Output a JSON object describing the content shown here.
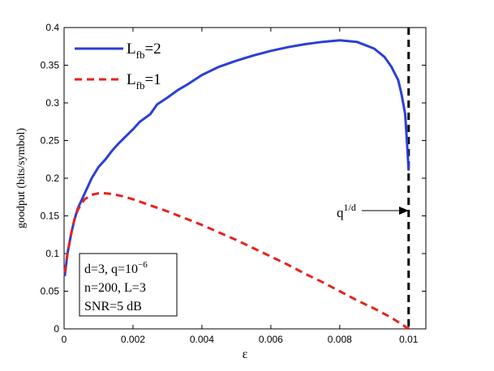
{
  "chart_data": {
    "type": "line",
    "xlabel": "ε",
    "ylabel": "goodput (bits/symbol)",
    "xlim": [
      0,
      0.0105
    ],
    "ylim": [
      0,
      0.4
    ],
    "xticks": [
      "0",
      "0.002",
      "0.004",
      "0.006",
      "0.008",
      "0.01"
    ],
    "yticks": [
      "0",
      "0.05",
      "0.1",
      "0.15",
      "0.2",
      "0.25",
      "0.3",
      "0.35",
      "0.4"
    ],
    "legend": {
      "placement": "top-left",
      "entries": [
        {
          "base": "L",
          "sub": "fb",
          "tail": "=2"
        },
        {
          "base": "L",
          "sub": "fb",
          "tail": "=1"
        }
      ]
    },
    "series": [
      {
        "style": "solid",
        "color": "#2a3fd8",
        "x": [
          2e-05,
          0.0001,
          0.0002,
          0.0003,
          0.0004,
          0.0005,
          0.0006,
          0.0008,
          0.001,
          0.0012,
          0.0014,
          0.0016,
          0.0018,
          0.002,
          0.0022,
          0.0025,
          0.0027,
          0.003,
          0.0033,
          0.0036,
          0.004,
          0.0045,
          0.005,
          0.0055,
          0.006,
          0.0065,
          0.007,
          0.0075,
          0.008,
          0.0085,
          0.009,
          0.0093,
          0.0095,
          0.0097,
          0.0098,
          0.0099,
          0.00995,
          0.01
        ],
        "y": [
          0.07,
          0.1,
          0.125,
          0.145,
          0.16,
          0.17,
          0.18,
          0.2,
          0.215,
          0.225,
          0.237,
          0.247,
          0.256,
          0.265,
          0.275,
          0.285,
          0.298,
          0.307,
          0.317,
          0.325,
          0.337,
          0.348,
          0.356,
          0.363,
          0.369,
          0.374,
          0.378,
          0.381,
          0.383,
          0.381,
          0.372,
          0.361,
          0.348,
          0.33,
          0.31,
          0.285,
          0.25,
          0.21
        ]
      },
      {
        "style": "dashed",
        "color": "#e8211e",
        "x": [
          2e-05,
          0.0001,
          0.0002,
          0.0003,
          0.0004,
          0.0005,
          0.0006,
          0.0008,
          0.001,
          0.0012,
          0.0014,
          0.0017,
          0.002,
          0.0025,
          0.003,
          0.0035,
          0.004,
          0.0045,
          0.005,
          0.0055,
          0.006,
          0.0065,
          0.007,
          0.0075,
          0.008,
          0.0085,
          0.009,
          0.0095,
          0.01
        ],
        "y": [
          0.075,
          0.1,
          0.125,
          0.145,
          0.158,
          0.166,
          0.172,
          0.178,
          0.18,
          0.18,
          0.179,
          0.176,
          0.172,
          0.164,
          0.156,
          0.147,
          0.138,
          0.128,
          0.118,
          0.107,
          0.096,
          0.085,
          0.073,
          0.062,
          0.05,
          0.038,
          0.027,
          0.015,
          0.0
        ]
      }
    ],
    "vline": {
      "x": 0.01,
      "style": "dashed",
      "color": "#000000"
    },
    "annotation": {
      "base": "q",
      "sup": "1/d",
      "x": 0.0099,
      "y": 0.157
    },
    "info_box": {
      "line1_base": "d=3, q=10",
      "line1_sup": "−6",
      "line2": "n=200, L=3",
      "line3": "SNR=5 dB"
    }
  }
}
